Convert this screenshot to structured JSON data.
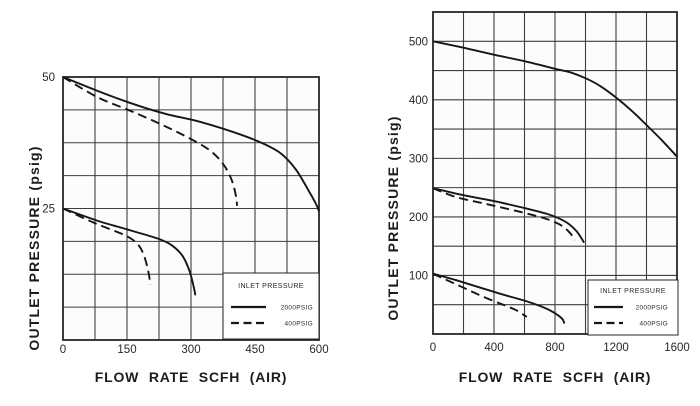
{
  "colors": {
    "curve": "#161616",
    "grid": "#3e3e3e",
    "border": "#262626",
    "text": "#1c1c1c",
    "plot_fill": "#fcfcfc",
    "background": "#ffffff"
  },
  "chart_data": [
    {
      "name": "low-pressure-regulator-flow-chart",
      "type": "line",
      "title": "",
      "xlabel": "FLOW RATE SCFH (AIR)",
      "ylabel": "OUTLET PRESSURE (psig)",
      "xlim": [
        0,
        600
      ],
      "ylim": [
        0,
        50
      ],
      "x_grid_step": 75,
      "y_grid_step": 6.25,
      "x_ticks": [
        0,
        150,
        300,
        450,
        600
      ],
      "y_ticks": [
        25,
        50
      ],
      "grid": true,
      "legend": {
        "title": "INLET PRESSURE",
        "position": "bottom-right",
        "entries": [
          {
            "label": "2000PSIG",
            "style": "solid"
          },
          {
            "label": "400PSIG",
            "style": "dashed"
          }
        ]
      },
      "series": [
        {
          "name": "set-50psig-inlet-2000psig",
          "style": "solid",
          "points": [
            [
              0,
              50
            ],
            [
              80,
              47.4
            ],
            [
              160,
              45
            ],
            [
              240,
              43
            ],
            [
              320,
              41.5
            ],
            [
              400,
              39.5
            ],
            [
              465,
              37.5
            ],
            [
              510,
              35.5
            ],
            [
              545,
              32.5
            ],
            [
              575,
              28.5
            ],
            [
              592,
              26
            ],
            [
              600,
              24.5
            ]
          ]
        },
        {
          "name": "set-50psig-inlet-400psig",
          "style": "dashed",
          "points": [
            [
              0,
              50
            ],
            [
              80,
              46.2
            ],
            [
              160,
              43.5
            ],
            [
              235,
              40.8
            ],
            [
              300,
              38.2
            ],
            [
              345,
              36
            ],
            [
              375,
              33.5
            ],
            [
              395,
              30.5
            ],
            [
              405,
              27.5
            ],
            [
              408,
              25.5
            ]
          ]
        },
        {
          "name": "set-25psig-inlet-2000psig",
          "style": "solid",
          "points": [
            [
              0,
              25
            ],
            [
              80,
              22.7
            ],
            [
              160,
              20.8
            ],
            [
              225,
              19.2
            ],
            [
              255,
              18
            ],
            [
              280,
              16
            ],
            [
              297,
              13
            ],
            [
              308,
              9.5
            ],
            [
              310,
              8.5
            ]
          ]
        },
        {
          "name": "set-25psig-inlet-400psig",
          "style": "dashed",
          "points": [
            [
              0,
              25
            ],
            [
              75,
              22.2
            ],
            [
              145,
              19.9
            ],
            [
              175,
              18.2
            ],
            [
              190,
              16
            ],
            [
              200,
              13
            ],
            [
              205,
              10.5
            ]
          ]
        }
      ]
    },
    {
      "name": "high-pressure-regulator-flow-chart",
      "type": "line",
      "title": "",
      "xlabel": "FLOW RATE SCFH (AIR)",
      "ylabel": "OUTLET PRESSURE (psig)",
      "xlim": [
        0,
        1600
      ],
      "ylim": [
        0,
        550
      ],
      "x_grid_step": 200,
      "y_grid_step": 50,
      "x_ticks": [
        0,
        400,
        800,
        1200,
        1600
      ],
      "y_ticks": [
        100,
        200,
        300,
        400,
        500
      ],
      "grid": true,
      "legend": {
        "title": "INLET PRESSURE",
        "position": "bottom-right",
        "entries": [
          {
            "label": "2000PSIG",
            "style": "solid"
          },
          {
            "label": "400PSIG",
            "style": "dashed"
          }
        ]
      },
      "series": [
        {
          "name": "set-500psig-inlet-2000psig",
          "style": "solid",
          "points": [
            [
              0,
              500
            ],
            [
              200,
              489
            ],
            [
              400,
              477
            ],
            [
              600,
              466
            ],
            [
              800,
              453
            ],
            [
              900,
              447
            ],
            [
              1000,
              437
            ],
            [
              1100,
              423
            ],
            [
              1200,
              404
            ],
            [
              1300,
              382
            ],
            [
              1400,
              357
            ],
            [
              1500,
              331
            ],
            [
              1600,
              303
            ]
          ]
        },
        {
          "name": "set-250psig-inlet-2000psig",
          "style": "solid",
          "points": [
            [
              0,
              249
            ],
            [
              200,
              237
            ],
            [
              400,
              227
            ],
            [
              600,
              215
            ],
            [
              750,
              205
            ],
            [
              830,
              197
            ],
            [
              890,
              188
            ],
            [
              940,
              176
            ],
            [
              975,
              163
            ],
            [
              990,
              156
            ]
          ]
        },
        {
          "name": "set-250psig-inlet-400psig",
          "style": "dashed",
          "points": [
            [
              0,
              249
            ],
            [
              150,
              234
            ],
            [
              350,
              222
            ],
            [
              550,
              210
            ],
            [
              700,
              200
            ],
            [
              780,
              193
            ],
            [
              850,
              184
            ],
            [
              900,
              172
            ],
            [
              930,
              160
            ]
          ]
        },
        {
          "name": "set-100psig-inlet-2000psig",
          "style": "solid",
          "points": [
            [
              0,
              103
            ],
            [
              150,
              92
            ],
            [
              300,
              80
            ],
            [
              450,
              68
            ],
            [
              600,
              57
            ],
            [
              700,
              48
            ],
            [
              770,
              40
            ],
            [
              820,
              32
            ],
            [
              850,
              25
            ],
            [
              862,
              18
            ]
          ]
        },
        {
          "name": "set-100psig-inlet-400psig",
          "style": "dashed",
          "points": [
            [
              0,
              103
            ],
            [
              100,
              91
            ],
            [
              200,
              79
            ],
            [
              300,
              67
            ],
            [
              400,
              56
            ],
            [
              480,
              48
            ],
            [
              550,
              40
            ],
            [
              615,
              29
            ]
          ]
        }
      ]
    }
  ]
}
